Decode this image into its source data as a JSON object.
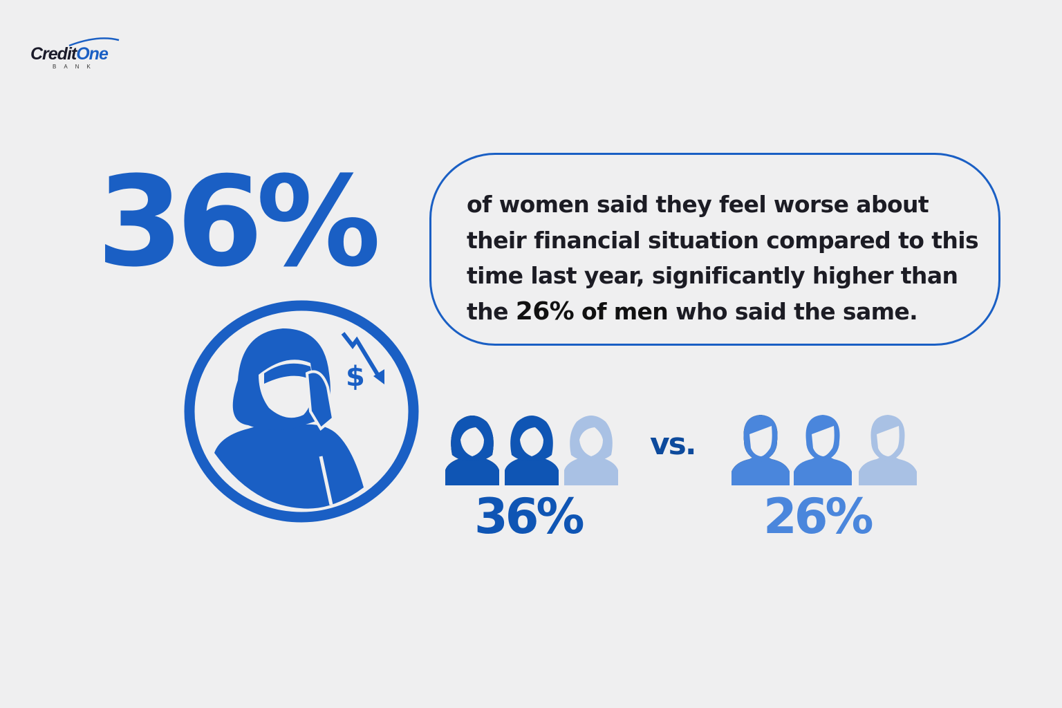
{
  "logo": {
    "brand": "CreditOne",
    "brand_part1": "Credit",
    "brand_part2": "One",
    "subtitle": "BANK"
  },
  "headline_stat": "36%",
  "callout": {
    "text_before": "of women said they feel worse about their financial situation compared to this time last year, significantly higher than the ",
    "highlight_number": "26%",
    "highlight_text": " of men",
    "text_after": " who said the same."
  },
  "comparison": {
    "women": {
      "value": "36%",
      "icon": "woman-icon",
      "filled_icons": 2,
      "total_icons": 3,
      "color": "#0f55b4"
    },
    "separator": "vs.",
    "men": {
      "value": "26%",
      "icon": "man-icon",
      "filled_icons": 2,
      "total_icons": 3,
      "color": "#4a86dc"
    },
    "faded_color": "#a9c1e4"
  },
  "illustration": {
    "icon": "stressed-woman-icon",
    "secondary_icon": "dollar-down-arrow-icon"
  },
  "colors": {
    "primary": "#1a5fc4",
    "background": "#efeff0"
  }
}
